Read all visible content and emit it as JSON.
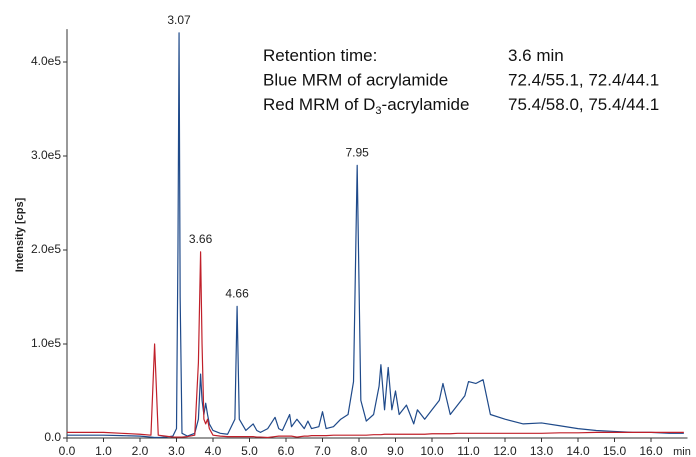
{
  "chart_data": {
    "type": "line",
    "ylabel": "Intensity [cps]",
    "xlabel": "min",
    "xlim": [
      0,
      17.0
    ],
    "ylim": [
      0,
      435000
    ],
    "xticks": [
      {
        "value": 0,
        "label": "0.0"
      },
      {
        "value": 1,
        "label": "1.0"
      },
      {
        "value": 2,
        "label": "2.0"
      },
      {
        "value": 3,
        "label": "3.0"
      },
      {
        "value": 4,
        "label": "4.0"
      },
      {
        "value": 5,
        "label": "5.0"
      },
      {
        "value": 6,
        "label": "6.0"
      },
      {
        "value": 7,
        "label": "7.0"
      },
      {
        "value": 8,
        "label": "8.0"
      },
      {
        "value": 9,
        "label": "9.0"
      },
      {
        "value": 10,
        "label": "10.0"
      },
      {
        "value": 11,
        "label": "11.0"
      },
      {
        "value": 12,
        "label": "12.0"
      },
      {
        "value": 13,
        "label": "13.0"
      },
      {
        "value": 14,
        "label": "14.0"
      },
      {
        "value": 15,
        "label": "15.0"
      },
      {
        "value": 16,
        "label": "16.0"
      }
    ],
    "yticks": [
      {
        "value": 0,
        "label": "0.0"
      },
      {
        "value": 100000,
        "label": "1.0e5"
      },
      {
        "value": 200000,
        "label": "2.0e5"
      },
      {
        "value": 300000,
        "label": "3.0e5"
      },
      {
        "value": 400000,
        "label": "4.0e5"
      }
    ],
    "x": [
      0,
      0.5,
      1.0,
      1.5,
      2.0,
      2.3,
      2.4,
      2.5,
      2.7,
      2.9,
      3.0,
      3.04,
      3.07,
      3.1,
      3.15,
      3.3,
      3.5,
      3.6,
      3.66,
      3.7,
      3.75,
      3.8,
      3.85,
      3.9,
      4.0,
      4.2,
      4.4,
      4.6,
      4.66,
      4.72,
      4.9,
      5.1,
      5.2,
      5.3,
      5.5,
      5.7,
      5.8,
      5.9,
      6.1,
      6.15,
      6.3,
      6.5,
      6.6,
      6.7,
      6.9,
      7.0,
      7.1,
      7.3,
      7.5,
      7.7,
      7.85,
      7.95,
      8.05,
      8.2,
      8.4,
      8.55,
      8.6,
      8.7,
      8.8,
      8.9,
      9.0,
      9.1,
      9.3,
      9.5,
      9.6,
      9.8,
      10.0,
      10.2,
      10.3,
      10.5,
      10.7,
      10.9,
      11.0,
      11.2,
      11.4,
      11.6,
      12.0,
      12.5,
      13.0,
      13.5,
      14.0,
      14.5,
      15.0,
      15.5,
      16.0,
      16.5,
      16.9
    ],
    "series": [
      {
        "color": "#1f4a8a",
        "values": [
          3000,
          3000,
          3000,
          2500,
          2000,
          1000,
          500,
          500,
          1000,
          2000,
          10000,
          200000,
          431000,
          150000,
          5000,
          2000,
          5000,
          20000,
          68000,
          40000,
          25000,
          37000,
          25000,
          15000,
          8000,
          5000,
          4000,
          20000,
          140000,
          20000,
          8000,
          15000,
          8000,
          6000,
          10000,
          22000,
          10000,
          8000,
          25000,
          12000,
          20000,
          10000,
          18000,
          10000,
          12000,
          28000,
          10000,
          12000,
          20000,
          25000,
          60000,
          290000,
          40000,
          18000,
          25000,
          55000,
          78000,
          30000,
          75000,
          30000,
          50000,
          25000,
          35000,
          15000,
          30000,
          20000,
          30000,
          40000,
          58000,
          25000,
          35000,
          45000,
          60000,
          58000,
          62000,
          25000,
          20000,
          15000,
          16000,
          13000,
          10000,
          8000,
          7000,
          6000,
          6000,
          5000,
          5000
        ]
      },
      {
        "color": "#c0202a",
        "values": [
          6000,
          6000,
          6000,
          5000,
          4000,
          3000,
          100000,
          3000,
          2000,
          1000,
          1000,
          1000,
          1000,
          1000,
          1000,
          1500,
          3000,
          80000,
          198000,
          100000,
          20000,
          15000,
          20000,
          10000,
          3000,
          2000,
          1500,
          1500,
          1500,
          1500,
          1500,
          1500,
          1000,
          1000,
          500,
          1500,
          2000,
          2000,
          2000,
          2000,
          1000,
          2000,
          2000,
          2500,
          2500,
          2500,
          2500,
          3000,
          3000,
          3000,
          3000,
          3000,
          3000,
          3000,
          3500,
          3500,
          3500,
          4000,
          4000,
          4000,
          4000,
          4000,
          4000,
          4000,
          4000,
          4000,
          4500,
          4500,
          4500,
          4500,
          5000,
          5000,
          5000,
          5000,
          5000,
          5000,
          5000,
          5000,
          5000,
          5500,
          5500,
          6000,
          6000,
          6000,
          6000,
          6000,
          6000
        ]
      }
    ],
    "annotations": [
      {
        "text": "3.07",
        "x": 3.07,
        "y": 431000
      },
      {
        "text": "3.66",
        "x": 3.66,
        "y": 198000
      },
      {
        "text": "4.66",
        "x": 4.66,
        "y": 140000
      },
      {
        "text": "7.95",
        "x": 7.95,
        "y": 290000
      }
    ],
    "info": [
      {
        "label": [
          "Retention time:"
        ],
        "value": "3.6 min"
      },
      {
        "label": [
          "Blue MRM of acrylamide"
        ],
        "value": "72.4/55.1, 72.4/44.1"
      },
      {
        "label": [
          "Red MRM of D",
          "3",
          "-acrylamide"
        ],
        "value": "75.4/58.0, 75.4/44.1"
      }
    ]
  }
}
